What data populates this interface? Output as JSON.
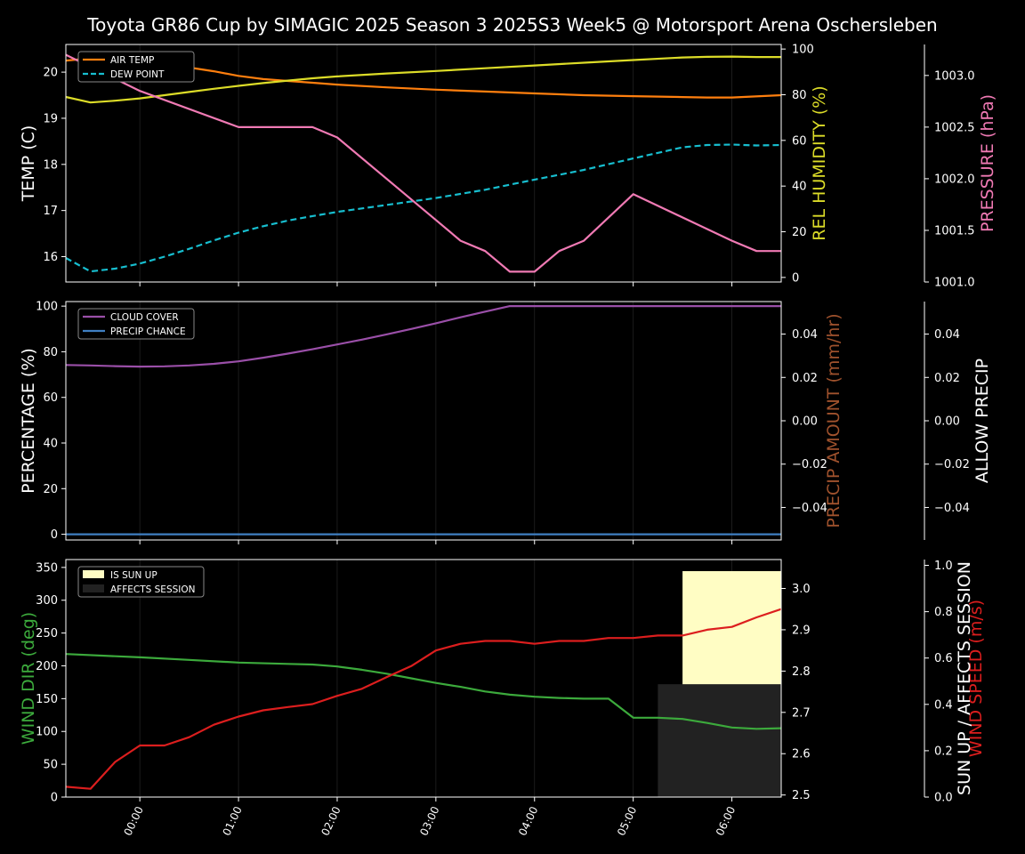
{
  "title": "Toyota GR86 Cup by SIMAGIC 2025 Season 3 2025S3 Week5 @ Motorsport Arena Oschersleben",
  "colors": {
    "air_temp": "#ff7f0e",
    "dew_point": "#17becf",
    "humidity": "#dcdc28",
    "pressure": "#f07ab4",
    "cloud": "#9a4fa8",
    "precip_chance": "#3f7fc2",
    "precip_amount": "#a0522d",
    "wind_dir": "#3caa3c",
    "wind_speed": "#dc1e1e",
    "sun_up": "#fffdc4",
    "affects": "#222222",
    "grid": "#3a3a3a"
  },
  "x_ticks": [
    {
      "value": 0,
      "label": "00:00"
    },
    {
      "value": 1,
      "label": "01:00"
    },
    {
      "value": 2,
      "label": "02:00"
    },
    {
      "value": 3,
      "label": "03:00"
    },
    {
      "value": 4,
      "label": "04:00"
    },
    {
      "value": 5,
      "label": "05:00"
    },
    {
      "value": 6,
      "label": "06:00"
    }
  ],
  "chart_data": [
    {
      "type": "line",
      "x_unit": "hours",
      "xlim": [
        -0.75,
        6.5
      ],
      "axes": {
        "left": {
          "label": "TEMP (C)",
          "ylim": [
            15.45,
            20.6
          ],
          "ticks": [
            16,
            17,
            18,
            19,
            20
          ]
        },
        "right": {
          "label": "REL HUMIDITY (%)",
          "ylim": [
            -2,
            102
          ],
          "ticks": [
            0,
            20,
            40,
            60,
            80,
            100
          ]
        },
        "right2": {
          "label": "PRESSURE (hPa)",
          "ylim": [
            1001.0,
            1003.3
          ],
          "ticks": [
            1001.0,
            1001.5,
            1002.0,
            1002.5,
            1003.0
          ],
          "tick_labels": [
            "1001.0",
            "1001.5",
            "1002.0",
            "1002.5",
            "1003.0"
          ]
        }
      },
      "legend": {
        "placement": "top-left",
        "entries": [
          "AIR TEMP",
          "DEW POINT"
        ]
      },
      "series": [
        {
          "name": "AIR TEMP",
          "axis": "left",
          "style": "solid",
          "color_key": "air_temp",
          "x": [
            -0.75,
            -0.5,
            -0.25,
            0,
            0.25,
            0.5,
            0.75,
            1,
            1.25,
            1.5,
            1.75,
            2,
            2.5,
            3,
            3.5,
            4,
            4.5,
            5,
            5.5,
            5.75,
            6,
            6.5
          ],
          "y": [
            20.25,
            20.3,
            20.3,
            20.25,
            20.2,
            20.1,
            20.02,
            19.92,
            19.85,
            19.81,
            19.77,
            19.73,
            19.67,
            19.62,
            19.58,
            19.54,
            19.5,
            19.48,
            19.46,
            19.45,
            19.45,
            19.5
          ]
        },
        {
          "name": "DEW POINT",
          "axis": "left",
          "style": "dashed",
          "color_key": "dew_point",
          "x": [
            -0.75,
            -0.5,
            -0.25,
            0,
            0.25,
            0.5,
            0.75,
            1,
            1.25,
            1.5,
            1.75,
            2,
            2.5,
            3,
            3.5,
            4,
            4.5,
            5,
            5.5,
            5.75,
            6,
            6.25,
            6.5
          ],
          "y": [
            15.97,
            15.68,
            15.74,
            15.85,
            16.0,
            16.17,
            16.35,
            16.52,
            16.66,
            16.78,
            16.88,
            16.97,
            17.12,
            17.27,
            17.45,
            17.67,
            17.88,
            18.13,
            18.37,
            18.42,
            18.43,
            18.41,
            18.42
          ]
        },
        {
          "name": "",
          "axis": "right",
          "style": "solid",
          "color_key": "humidity",
          "x": [
            -0.75,
            -0.5,
            -0.25,
            0,
            0.25,
            0.5,
            0.75,
            1,
            1.25,
            1.5,
            1.75,
            2,
            2.5,
            3,
            3.5,
            4,
            4.5,
            5,
            5.5,
            5.75,
            6,
            6.25,
            6.5
          ],
          "y": [
            79.0,
            76.6,
            77.4,
            78.4,
            79.8,
            81.2,
            82.6,
            83.9,
            85.1,
            86.2,
            87.2,
            88.0,
            89.3,
            90.4,
            91.6,
            92.8,
            94.0,
            95.2,
            96.3,
            96.6,
            96.7,
            96.5,
            96.5
          ]
        },
        {
          "name": "",
          "axis": "right2",
          "style": "solid",
          "color_key": "pressure",
          "x": [
            -0.75,
            0,
            1,
            1.25,
            1.5,
            1.75,
            2,
            3,
            3.25,
            3.5,
            3.75,
            4,
            4.25,
            4.5,
            5,
            6,
            6.25,
            6.5
          ],
          "y": [
            1003.2,
            1002.85,
            1002.5,
            1002.5,
            1002.5,
            1002.5,
            1002.4,
            1001.6,
            1001.4,
            1001.3,
            1001.1,
            1001.1,
            1001.3,
            1001.4,
            1001.85,
            1001.4,
            1001.3,
            1001.3
          ]
        }
      ]
    },
    {
      "type": "line",
      "x_unit": "hours",
      "xlim": [
        -0.75,
        6.5
      ],
      "axes": {
        "left": {
          "label": "PERCENTAGE (%)",
          "ylim": [
            -2.5,
            102
          ],
          "ticks": [
            0,
            20,
            40,
            60,
            80,
            100
          ]
        },
        "right": {
          "label": "PRECIP AMOUNT (mm/hr)",
          "ylim": [
            -0.055,
            0.055
          ],
          "ticks": [
            -0.04,
            -0.02,
            0.0,
            0.02,
            0.04
          ],
          "tick_labels": [
            "−0.04",
            "−0.02",
            "0.00",
            "0.02",
            "0.04"
          ]
        },
        "right2": {
          "label": "ALLOW PRECIP",
          "ylim": [
            -0.055,
            0.055
          ],
          "ticks": [
            -0.04,
            -0.02,
            0.0,
            0.02,
            0.04
          ],
          "tick_labels": [
            "−0.04",
            "−0.02",
            "0.00",
            "0.02",
            "0.04"
          ]
        }
      },
      "legend": {
        "placement": "top-left",
        "entries": [
          "CLOUD COVER",
          "PRECIP CHANCE"
        ]
      },
      "series": [
        {
          "name": "CLOUD COVER",
          "axis": "left",
          "style": "solid",
          "color_key": "cloud",
          "x": [
            -0.75,
            -0.5,
            -0.25,
            0,
            0.25,
            0.5,
            0.75,
            1,
            1.25,
            1.5,
            1.75,
            2,
            2.25,
            2.5,
            2.75,
            3,
            3.25,
            3.5,
            3.75,
            4,
            5,
            6,
            6.5
          ],
          "y": [
            74.2,
            74.0,
            73.7,
            73.5,
            73.6,
            74.0,
            74.7,
            75.8,
            77.4,
            79.2,
            81.1,
            83.2,
            85.3,
            87.6,
            90.0,
            92.5,
            95.1,
            97.6,
            100,
            100,
            100,
            100,
            100
          ]
        },
        {
          "name": "PRECIP CHANCE",
          "axis": "left",
          "style": "solid",
          "color_key": "precip_chance",
          "x": [
            -0.75,
            6.5
          ],
          "y": [
            0,
            0
          ]
        }
      ]
    },
    {
      "type": "line",
      "x_unit": "hours",
      "xlim": [
        -0.75,
        6.5
      ],
      "axes": {
        "left": {
          "label": "WIND DIR (deg)",
          "ylim": [
            0,
            362
          ],
          "ticks": [
            0,
            50,
            100,
            150,
            200,
            250,
            300,
            350
          ]
        },
        "right": {
          "label": "WIND SPEED (m/s)",
          "ylim": [
            2.495,
            3.07
          ],
          "ticks": [
            2.5,
            2.6,
            2.7,
            2.8,
            2.9,
            3.0
          ],
          "tick_labels": [
            "2.5",
            "2.6",
            "2.7",
            "2.8",
            "2.9",
            "3.0"
          ]
        },
        "right2": {
          "label": "SUN UP / AFFECTS SESSION",
          "ylim": [
            0,
            1.025
          ],
          "ticks": [
            0,
            0.2,
            0.4,
            0.6,
            0.8,
            1.0
          ],
          "tick_labels": [
            "0.0",
            "0.2",
            "0.4",
            "0.6",
            "0.8",
            "1.0"
          ]
        }
      },
      "legend": {
        "placement": "top-left",
        "entries": [
          "IS SUN UP",
          "AFFECTS SESSION"
        ]
      },
      "regions": [
        {
          "name": "IS SUN UP",
          "color_key": "sun_up",
          "x_start": 5.5,
          "x_end": 6.5,
          "value": 0.975
        },
        {
          "name": "AFFECTS SESSION",
          "color_key": "affects",
          "x_start": 5.25,
          "x_end": 6.5,
          "value": 0.487
        }
      ],
      "series": [
        {
          "name": "",
          "axis": "left",
          "style": "solid",
          "color_key": "wind_dir",
          "x": [
            -0.75,
            0,
            0.5,
            1,
            1.5,
            1.75,
            2,
            2.25,
            2.5,
            2.75,
            3,
            3.25,
            3.5,
            3.75,
            4,
            4.25,
            4.5,
            4.75,
            5,
            5.25,
            5.5,
            5.75,
            6,
            6.25,
            6.5
          ],
          "y": [
            218,
            213,
            209,
            205,
            203,
            202,
            199,
            194,
            188,
            181,
            174,
            168,
            161,
            156,
            153,
            151,
            150,
            150,
            121,
            121,
            119,
            113,
            106,
            104,
            105
          ]
        },
        {
          "name": "",
          "axis": "right",
          "style": "solid",
          "color_key": "wind_speed",
          "x": [
            -0.75,
            -0.5,
            -0.25,
            0,
            0.25,
            0.5,
            0.75,
            1,
            1.25,
            1.5,
            1.75,
            2,
            2.25,
            2.5,
            2.75,
            3,
            3.25,
            3.5,
            3.75,
            4,
            4.25,
            4.5,
            4.75,
            5,
            5.25,
            5.5,
            5.75,
            6,
            6.25,
            6.5
          ],
          "y": [
            2.52,
            2.515,
            2.58,
            2.62,
            2.62,
            2.64,
            2.67,
            2.69,
            2.705,
            2.713,
            2.72,
            2.74,
            2.757,
            2.785,
            2.812,
            2.85,
            2.866,
            2.873,
            2.873,
            2.866,
            2.873,
            2.873,
            2.88,
            2.88,
            2.886,
            2.886,
            2.9,
            2.907,
            2.93,
            2.95
          ]
        }
      ]
    }
  ]
}
